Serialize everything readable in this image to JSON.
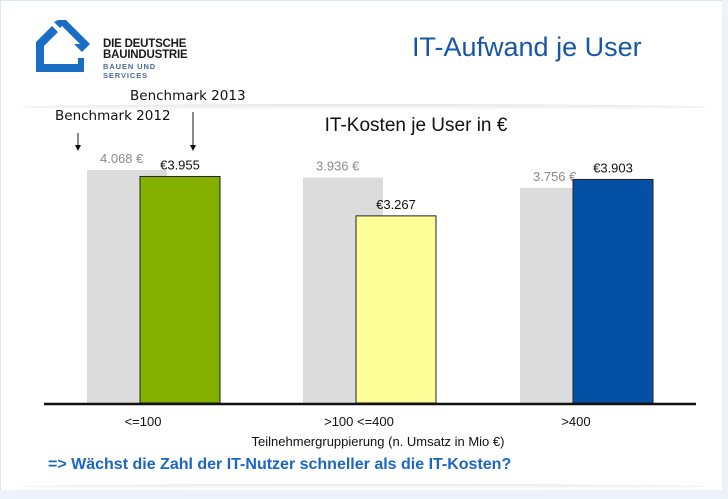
{
  "logo": {
    "line1": "DIE DEUTSCHE",
    "line2": "BAUINDUSTRIE",
    "line3": "BAUEN UND SERVICES",
    "icon": "house-outline-icon",
    "color": "#1a6fc4"
  },
  "slide": {
    "title": "IT-Aufwand je User",
    "title_color": "#1856a6",
    "question": "=> Wächst die Zahl der IT-Nutzer schneller als die IT-Kosten?",
    "question_color": "#1b66c4"
  },
  "annotations": {
    "benchmark_2012": "Benchmark 2012",
    "benchmark_2013": "Benchmark 2013"
  },
  "chart_data": {
    "type": "bar",
    "title": "IT-Kosten je User in €",
    "xlabel": "Teilnehmergruppierung (n. Umsatz in Mio €)",
    "ylabel": "",
    "ylim": [
      0,
      4068
    ],
    "grid": false,
    "categories": [
      "<=100",
      ">100 <=400",
      ">400"
    ],
    "series": [
      {
        "name": "Benchmark 2012",
        "values": [
          4068,
          3936,
          3756
        ],
        "labels": [
          "4.068 €",
          "3.936 €",
          "3.756 €"
        ],
        "color": "#dcdcdc",
        "label_color": "#8a8a8a"
      },
      {
        "name": "Benchmark 2013",
        "values": [
          3955,
          3267,
          3903
        ],
        "labels": [
          "€3.955",
          "€3.267",
          "€3.903"
        ],
        "colors": [
          "#84b000",
          "#ffff99",
          "#0450a4"
        ],
        "label_color": "#111111"
      }
    ]
  }
}
